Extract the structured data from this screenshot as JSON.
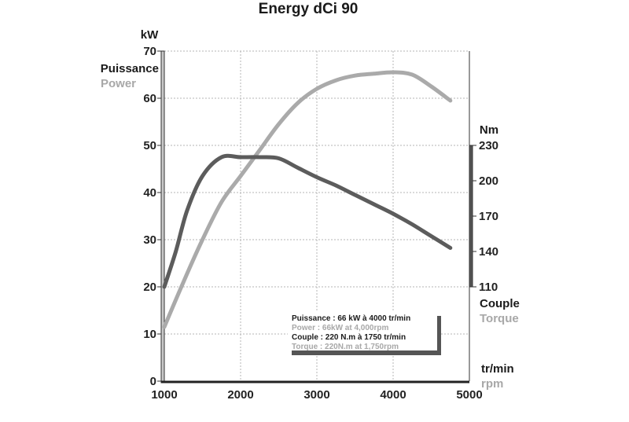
{
  "chart_data": {
    "type": "line",
    "title": "Energy dCi 90",
    "xlabel_fr": "tr/min",
    "xlabel_en": "rpm",
    "xlim": [
      1000,
      5000
    ],
    "x_ticks": [
      1000,
      2000,
      3000,
      4000,
      5000
    ],
    "left_axis": {
      "unit": "kW",
      "label_fr": "Puissance",
      "label_en": "Power",
      "ylim": [
        0,
        70
      ],
      "ticks": [
        0,
        10,
        20,
        30,
        40,
        50,
        60,
        70
      ]
    },
    "right_axis": {
      "unit": "Nm",
      "label_fr": "Couple",
      "label_en": "Torque",
      "ylim": [
        110,
        230
      ],
      "ticks": [
        110,
        140,
        170,
        200,
        230
      ]
    },
    "grid": true,
    "series": [
      {
        "name": "Power",
        "axis": "left",
        "color": "#aaaaaa",
        "x": [
          1000,
          1250,
          1500,
          1750,
          2000,
          2250,
          2500,
          2750,
          3000,
          3250,
          3500,
          3750,
          4000,
          4250,
          4500,
          4750
        ],
        "y": [
          11.5,
          21,
          30,
          38,
          43.5,
          49,
          54.5,
          59,
          62,
          63.8,
          64.8,
          65.2,
          65.5,
          65,
          62.5,
          59.5
        ]
      },
      {
        "name": "Torque",
        "axis": "right",
        "color": "#5c5c5c",
        "x": [
          1000,
          1150,
          1300,
          1500,
          1750,
          2000,
          2250,
          2500,
          2750,
          3000,
          3250,
          3500,
          3750,
          4000,
          4250,
          4500,
          4750
        ],
        "y": [
          110,
          140,
          175,
          204,
          220,
          220,
          220,
          219,
          211,
          203,
          196,
          188,
          180,
          172,
          163,
          153,
          143
        ]
      }
    ],
    "legend": {
      "placement": "bottom-right",
      "lines": [
        "Puissance : 66 kW à 4000 tr/min",
        "Power : 66kW at 4,000rpm",
        "Couple : 220 N.m à 1750 tr/min",
        "Torque : 220N.m at 1,750rpm"
      ]
    }
  }
}
